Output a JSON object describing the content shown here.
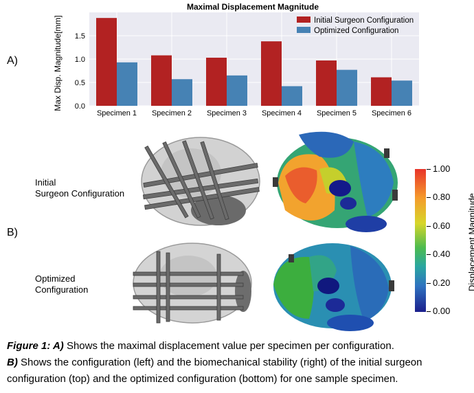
{
  "panel_a_label": "A)",
  "panel_b_label": "B)",
  "chart_data": {
    "type": "bar",
    "title": "Maximal Displacement Magnitude",
    "xlabel": "",
    "ylabel": "Max Disp. Magnitude[mm]",
    "categories": [
      "Specimen 1",
      "Specimen 2",
      "Specimen 3",
      "Specimen 4",
      "Specimen 5",
      "Specimen 6"
    ],
    "series": [
      {
        "name": "Initial Surgeon Configuration",
        "color": "#b22222",
        "values": [
          1.88,
          1.08,
          1.03,
          1.38,
          0.97,
          0.61
        ]
      },
      {
        "name": "Optimized Configuration",
        "color": "#4682b4",
        "values": [
          0.93,
          0.57,
          0.65,
          0.42,
          0.77,
          0.54
        ]
      }
    ],
    "ylim": [
      0,
      2.0
    ],
    "yticks": [
      "0.0",
      "0.5",
      "1.0",
      "1.5"
    ],
    "grid": true,
    "legend": "top-right"
  },
  "row_labels": {
    "initial": [
      "Initial",
      "Surgeon Configuration"
    ],
    "optimized": [
      "Optimized",
      "Configuration"
    ]
  },
  "colorbar": {
    "title": "Displacement Magnitude",
    "ticks": [
      "1.00",
      "0.80",
      "0.60",
      "0.40",
      "0.20",
      "0.00"
    ]
  },
  "caption": {
    "line1_bold": "Figure 1: A)",
    "line1_text": " Shows the maximal displacement value per specimen per configuration.",
    "line2_bold": "B)",
    "line2_text": " Shows the configuration (left) and the biomechanical stability (right) of the initial surgeon configuration (top) and the optimized configuration (bottom) for one sample specimen."
  }
}
